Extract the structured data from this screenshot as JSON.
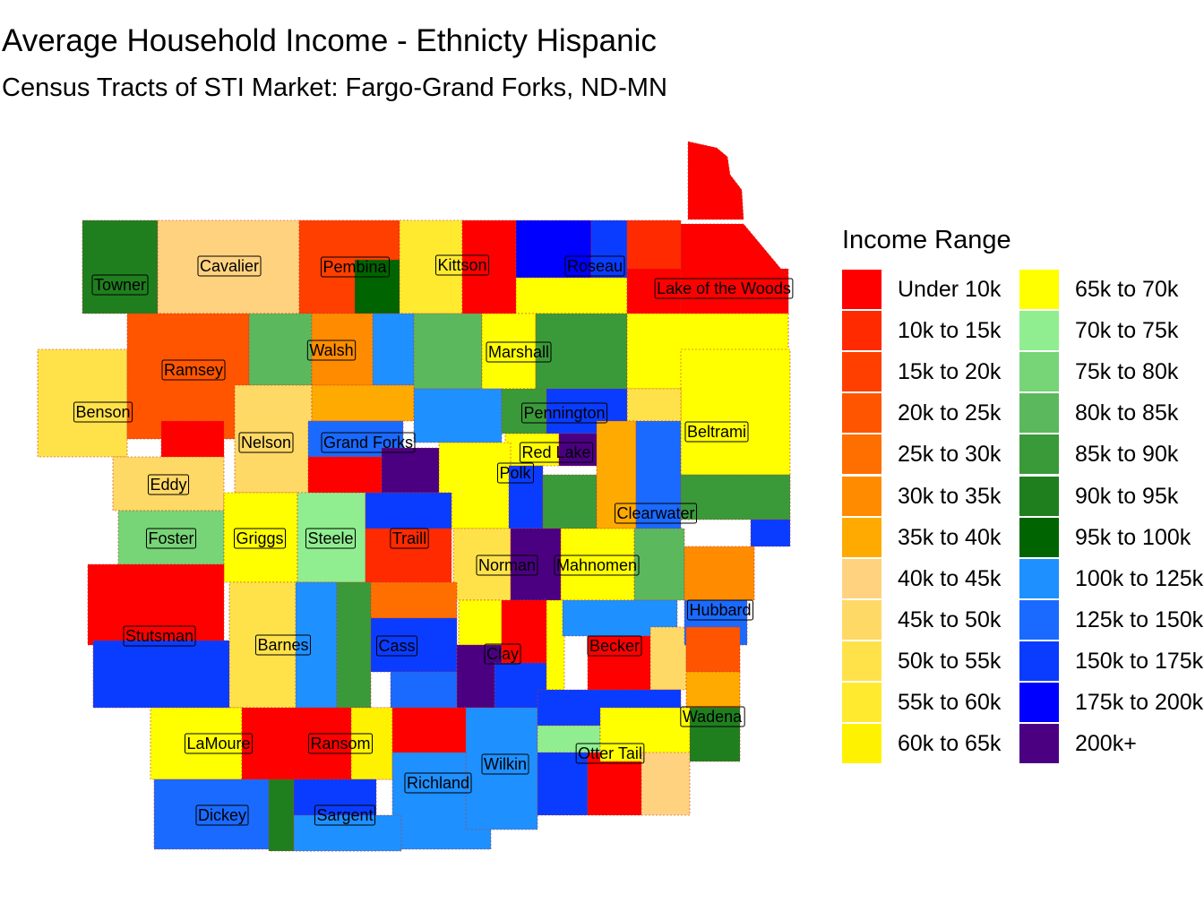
{
  "title": "Average Household Income - Ethnicty Hispanic",
  "subtitle": "Census Tracts of STI Market: Fargo-Grand Forks, ND-MN",
  "legend": {
    "title": "Income Range",
    "items": [
      {
        "label": "Under 10k",
        "color": "#ff0000"
      },
      {
        "label": "10k to 15k",
        "color": "#ff2a00"
      },
      {
        "label": "15k to 20k",
        "color": "#ff3f00"
      },
      {
        "label": "20k to 25k",
        "color": "#ff5500"
      },
      {
        "label": "25k to 30k",
        "color": "#ff6f00"
      },
      {
        "label": "30k to 35k",
        "color": "#ff8c00"
      },
      {
        "label": "35k to 40k",
        "color": "#ffaa00"
      },
      {
        "label": "40k to 45k",
        "color": "#ffd27f"
      },
      {
        "label": "45k to 50k",
        "color": "#ffd966"
      },
      {
        "label": "50k to 55k",
        "color": "#ffe24a"
      },
      {
        "label": "55k to 60k",
        "color": "#ffea30"
      },
      {
        "label": "60k to 65k",
        "color": "#fff200"
      },
      {
        "label": "65k to 70k",
        "color": "#ffff00"
      },
      {
        "label": "70k to 75k",
        "color": "#90ee90"
      },
      {
        "label": "75k to 80k",
        "color": "#77d477"
      },
      {
        "label": "80k to 85k",
        "color": "#5cb85c"
      },
      {
        "label": "85k to 90k",
        "color": "#3a9a3a"
      },
      {
        "label": "90k to 95k",
        "color": "#1f7f1f"
      },
      {
        "label": "95k to 100k",
        "color": "#006400"
      },
      {
        "label": "100k to 125k",
        "color": "#1e90ff"
      },
      {
        "label": "125k to 150k",
        "color": "#1a6aff"
      },
      {
        "label": "150k to 175k",
        "color": "#0a3cff"
      },
      {
        "label": "175k to 200k",
        "color": "#0000ff"
      },
      {
        "label": "200k+",
        "color": "#4b0082"
      }
    ]
  },
  "counties": [
    {
      "name": "Towner",
      "color": "#1f7f1f"
    },
    {
      "name": "Cavalier",
      "color": "#ffd27f"
    },
    {
      "name": "Pembina",
      "color": "#ff3f00"
    },
    {
      "name": "Kittson",
      "color": "#ff0000"
    },
    {
      "name": "Roseau",
      "color": "#0000ff"
    },
    {
      "name": "Lake of the Woods",
      "color": "#ff0000"
    },
    {
      "name": "Ramsey",
      "color": "#ff5500"
    },
    {
      "name": "Walsh",
      "color": "#ff8c00"
    },
    {
      "name": "Marshall",
      "color": "#ffff00"
    },
    {
      "name": "Benson",
      "color": "#ffe24a"
    },
    {
      "name": "Pennington",
      "color": "#0a3cff"
    },
    {
      "name": "Beltrami",
      "color": "#ffff00"
    },
    {
      "name": "Nelson",
      "color": "#ffd966"
    },
    {
      "name": "Grand Forks",
      "color": "#1a6aff"
    },
    {
      "name": "Red Lake",
      "color": "#4b0082"
    },
    {
      "name": "Eddy",
      "color": "#ffd966"
    },
    {
      "name": "Polk",
      "color": "#ffff00"
    },
    {
      "name": "Clearwater",
      "color": "#1a6aff"
    },
    {
      "name": "Foster",
      "color": "#77d477"
    },
    {
      "name": "Griggs",
      "color": "#ffff00"
    },
    {
      "name": "Steele",
      "color": "#90ee90"
    },
    {
      "name": "Traill",
      "color": "#ff2a00"
    },
    {
      "name": "Norman",
      "color": "#ffe24a"
    },
    {
      "name": "Mahnomen",
      "color": "#ffff00"
    },
    {
      "name": "Hubbard",
      "color": "#1a6aff"
    },
    {
      "name": "Stutsman",
      "color": "#ff0000"
    },
    {
      "name": "Barnes",
      "color": "#ffd966"
    },
    {
      "name": "Cass",
      "color": "#0a3cff"
    },
    {
      "name": "Clay",
      "color": "#ffff00"
    },
    {
      "name": "Becker",
      "color": "#1e90ff"
    },
    {
      "name": "Wadena",
      "color": "#1f7f1f"
    },
    {
      "name": "LaMoure",
      "color": "#ffff00"
    },
    {
      "name": "Ransom",
      "color": "#ff0000"
    },
    {
      "name": "Wilkin",
      "color": "#1e90ff"
    },
    {
      "name": "Otter Tail",
      "color": "#ffd27f"
    },
    {
      "name": "Richland",
      "color": "#1e90ff"
    },
    {
      "name": "Dickey",
      "color": "#1a6aff"
    },
    {
      "name": "Sargent",
      "color": "#0a3cff"
    }
  ]
}
